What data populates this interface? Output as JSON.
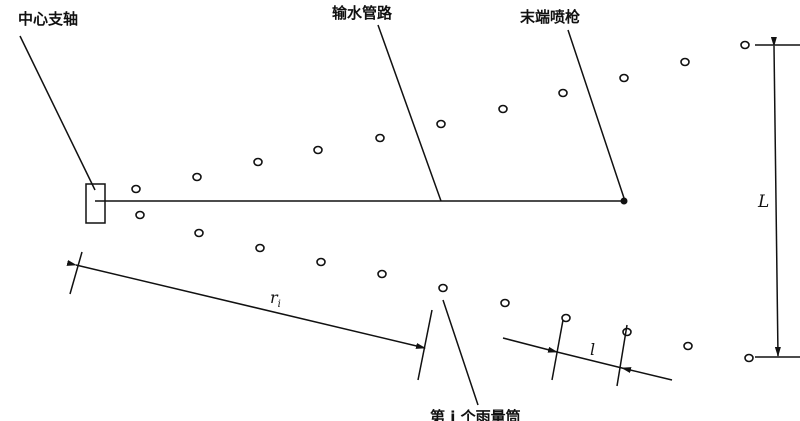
{
  "labels": {
    "center_pivot": "中心支轴",
    "water_pipe": "输水管路",
    "end_gun": "末端喷枪",
    "rain_gauge": "第 i 个雨量筒",
    "length_symbol": "L",
    "radius_symbol": "r",
    "radius_subscript": "i",
    "spacing_symbol": "l"
  },
  "gauge_marker": "o",
  "colors": {
    "ink": "#111111",
    "background": "#ffffff"
  }
}
